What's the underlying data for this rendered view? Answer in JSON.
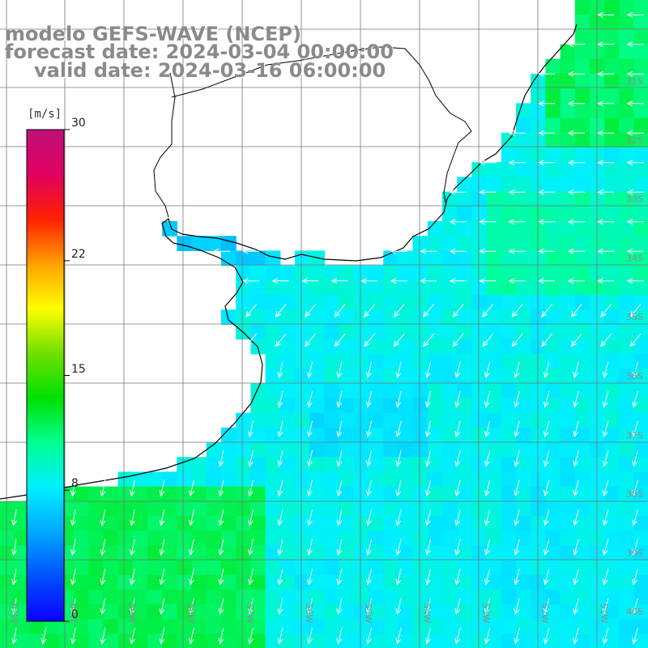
{
  "title": {
    "line1": "modelo GEFS-WAVE (NCEP)",
    "line2": "forecast date: 2024-03-04 00:00:00",
    "line3": "valid date: 2024-03-16 06:00:00"
  },
  "colorbar": {
    "unit": "[m/s]",
    "ticks": [
      {
        "label": "30",
        "value": 30
      },
      {
        "label": "22",
        "value": 22
      },
      {
        "label": "15",
        "value": 15
      },
      {
        "label": "8",
        "value": 8
      },
      {
        "label": "0",
        "value": 0
      }
    ],
    "min": 0,
    "max": 30,
    "colors": [
      "#0a00ff",
      "#0050ff",
      "#00a8ff",
      "#00f0ff",
      "#00ff90",
      "#00e000",
      "#70e000",
      "#ffff00",
      "#ffa000",
      "#ff2000",
      "#e00060",
      "#c0107a"
    ]
  },
  "map": {
    "lat_labels": [
      "31S",
      "32S",
      "33S",
      "34S",
      "35S",
      "36S",
      "37S",
      "38S",
      "39S",
      "40S",
      "41S"
    ],
    "lon_labels": [
      "61W",
      "60W",
      "59W",
      "58W",
      "57W",
      "56W",
      "55W",
      "54W",
      "53W",
      "52W",
      "51W",
      "50W"
    ],
    "field": "wind speed and direction",
    "prevailing_direction": "south-southwest over open ocean, west near Rio de la Plata",
    "speed_range_shown": [
      5,
      13
    ]
  }
}
